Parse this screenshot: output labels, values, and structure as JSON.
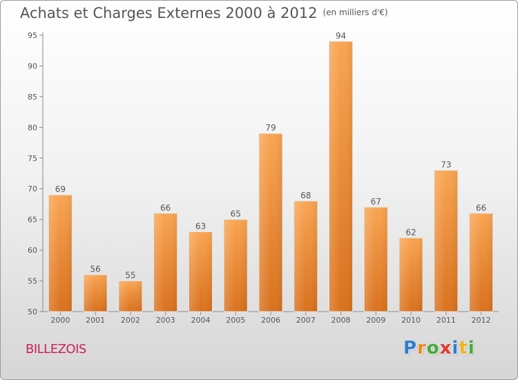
{
  "chart_data": {
    "type": "bar",
    "title": "Achats et Charges Externes 2000 à 2012",
    "subtitle": "(en milliers d'€)",
    "categories": [
      "2000",
      "2001",
      "2002",
      "2003",
      "2004",
      "2005",
      "2006",
      "2007",
      "2008",
      "2009",
      "2010",
      "2011",
      "2012"
    ],
    "values": [
      69,
      56,
      55,
      66,
      63,
      65,
      79,
      68,
      94,
      67,
      62,
      73,
      66
    ],
    "xlabel": "",
    "ylabel": "",
    "ylim": [
      50,
      95
    ],
    "yticks": [
      50,
      55,
      60,
      65,
      70,
      75,
      80,
      85,
      90,
      95
    ],
    "grid": false,
    "bar_color_top": "#f9a552",
    "bar_color_bottom": "#d9711d",
    "data_labels": true
  },
  "commune_name": "BILLEZOIS",
  "logo": {
    "letters": [
      "P",
      "r",
      "o",
      "x",
      "i",
      "t",
      "i"
    ],
    "colors": [
      "#2c7fd0",
      "#f08a1c",
      "#48a93a",
      "#e03a2c",
      "#2c7fd0",
      "#f0b21c",
      "#48a93a"
    ]
  }
}
